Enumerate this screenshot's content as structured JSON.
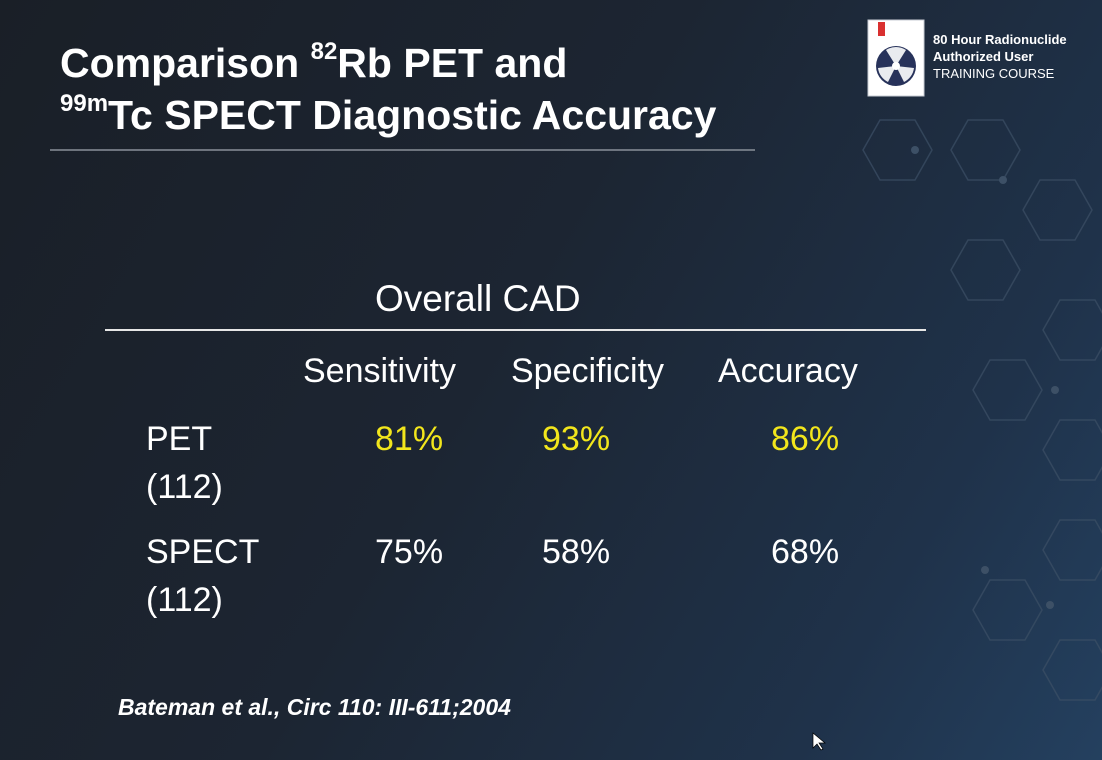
{
  "title": {
    "line1": {
      "text": "Comparison ",
      "sup": "82",
      "rest": "Rb PET and"
    },
    "line2": {
      "sup": "99m",
      "rest": "Tc SPECT Diagnostic Accuracy"
    }
  },
  "logo": {
    "line1": "80 Hour Radionuclide",
    "line2": "Authorized User",
    "line3": "TRAINING COURSE"
  },
  "table": {
    "heading": "Overall CAD",
    "columns": [
      "Sensitivity",
      "Specificity",
      "Accuracy"
    ],
    "rows": [
      {
        "label": "PET",
        "sublabel": "(112)",
        "values": [
          "81%",
          "93%",
          "86%"
        ]
      },
      {
        "label": "SPECT",
        "sublabel": "(112)",
        "values": [
          "75%",
          "58%",
          "68%"
        ]
      }
    ]
  },
  "citation": "Bateman et al., Circ 110: III-611;2004"
}
